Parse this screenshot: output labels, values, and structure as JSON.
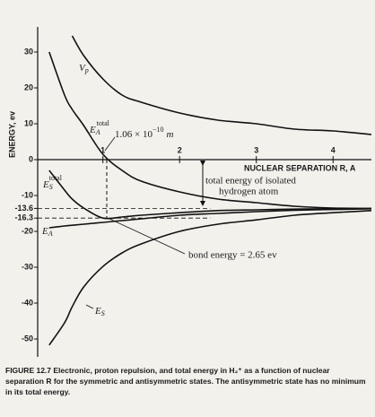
{
  "chart_data": {
    "type": "line",
    "y_label": "ENERGY, ev",
    "x_label": "NUCLEAR SEPARATION R, A",
    "xlim": [
      0.15,
      4.5
    ],
    "ylim": [
      -55,
      35
    ],
    "xticks": [
      1,
      2,
      3,
      4
    ],
    "yticks": [
      30,
      20,
      10,
      0,
      -10,
      -13.6,
      -16.3,
      -20,
      -30,
      -40,
      -50
    ],
    "x": [
      0.3,
      0.5,
      0.6,
      0.75,
      1,
      1.25,
      1.5,
      2,
      2.5,
      3,
      3.5,
      4,
      4.5
    ],
    "series": [
      {
        "name": "V",
        "sub": "p",
        "color": "#111111",
        "values": [
          null,
          null,
          34.5,
          29,
          22.5,
          18,
          16,
          13,
          11,
          10,
          8.5,
          8,
          7
        ]
      },
      {
        "name": "E",
        "sub": "A",
        "sup": "total",
        "color": "#111111",
        "values": [
          30,
          18,
          14,
          9.5,
          1.5,
          -3,
          -6,
          -9,
          -11,
          -12,
          -13,
          -13.5,
          -13.6
        ]
      },
      {
        "name": "E",
        "sub": "S",
        "sup": "total",
        "color": "#111111",
        "values": [
          -3,
          -8.5,
          -11,
          -13.5,
          -16.3,
          -16,
          -15.5,
          -14.8,
          -14.2,
          -14,
          -13.8,
          -13.7,
          -13.6
        ]
      },
      {
        "name": "E",
        "sub": "A",
        "color": "#111111",
        "values": [
          -19,
          -18.5,
          -18.3,
          -18,
          -17.5,
          -17,
          -16.5,
          -15.5,
          -15,
          -14.5,
          -14.1,
          -13.9,
          -13.7
        ]
      },
      {
        "name": "E",
        "sub": "S",
        "color": "#111111",
        "values": [
          -51.7,
          -45.5,
          -41,
          -35.5,
          -29.8,
          -26,
          -23.5,
          -20,
          -18,
          -16.8,
          -15.5,
          -14.8,
          -14.2
        ]
      }
    ],
    "annotations": {
      "separation": {
        "base": "1.06 × 10",
        "sup": "−10",
        "unit": "m"
      },
      "isolated_atom": [
        "total energy of isolated",
        "hydrogen atom"
      ],
      "bond": "bond energy = 2.65 ev"
    },
    "caption": "FIGURE 12.7 Electronic, proton repulsion, and total energy in H₂⁺ as a function of nuclear separation R for the symmetric and antisymmetric states. The antisymmetric state has no minimum in its total energy."
  }
}
